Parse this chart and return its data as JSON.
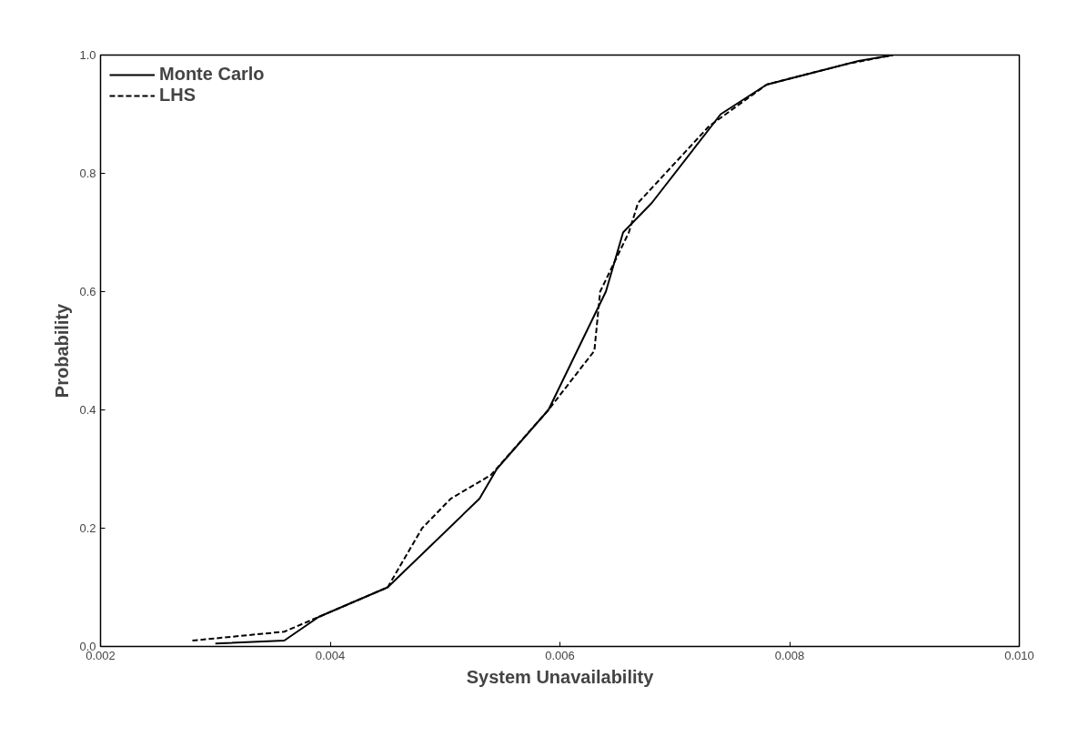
{
  "chart_data": {
    "type": "line",
    "xlabel": "System Unavailability",
    "ylabel": "Probability",
    "xlim": [
      0.002,
      0.01
    ],
    "xticks": [
      {
        "value": 0.002,
        "label": "0.002"
      },
      {
        "value": 0.004,
        "label": "0.004"
      },
      {
        "value": 0.006,
        "label": "0.006"
      },
      {
        "value": 0.008,
        "label": "0.008"
      },
      {
        "value": 0.01,
        "label": "0.010"
      }
    ],
    "ylim": [
      0,
      1
    ],
    "yticks": [
      {
        "value": 0,
        "label": "0.0"
      },
      {
        "value": 0.2,
        "label": "0.2"
      },
      {
        "value": 0.4,
        "label": "0.4"
      },
      {
        "value": 0.6,
        "label": "0.6"
      },
      {
        "value": 0.8,
        "label": "0.8"
      },
      {
        "value": 1,
        "label": "1.0"
      }
    ],
    "grid": false,
    "legend": "top left",
    "series": [
      {
        "name": "Monte Carlo",
        "color": "#000000",
        "line_style": "solid",
        "x": [
          0.003,
          0.0036,
          0.0039,
          0.0045,
          0.0053,
          0.00545,
          0.0059,
          0.0064,
          0.00655,
          0.0068,
          0.0074,
          0.0078,
          0.0086,
          0.0089
        ],
        "values": [
          0.005,
          0.01,
          0.05,
          0.1,
          0.25,
          0.3,
          0.4,
          0.6,
          0.7,
          0.75,
          0.9,
          0.95,
          0.99,
          1.0
        ]
      },
      {
        "name": "LHS",
        "color": "#000000",
        "line_style": "dashed",
        "x": [
          0.0028,
          0.0036,
          0.0039,
          0.0045,
          0.0048,
          0.00505,
          0.0054,
          0.0059,
          0.0063,
          0.00635,
          0.0066,
          0.00668,
          0.0073,
          0.0078,
          0.0085,
          0.0089
        ],
        "values": [
          0.01,
          0.025,
          0.05,
          0.1,
          0.2,
          0.25,
          0.29,
          0.4,
          0.5,
          0.6,
          0.7,
          0.75,
          0.88,
          0.95,
          0.985,
          1.0
        ]
      }
    ]
  }
}
